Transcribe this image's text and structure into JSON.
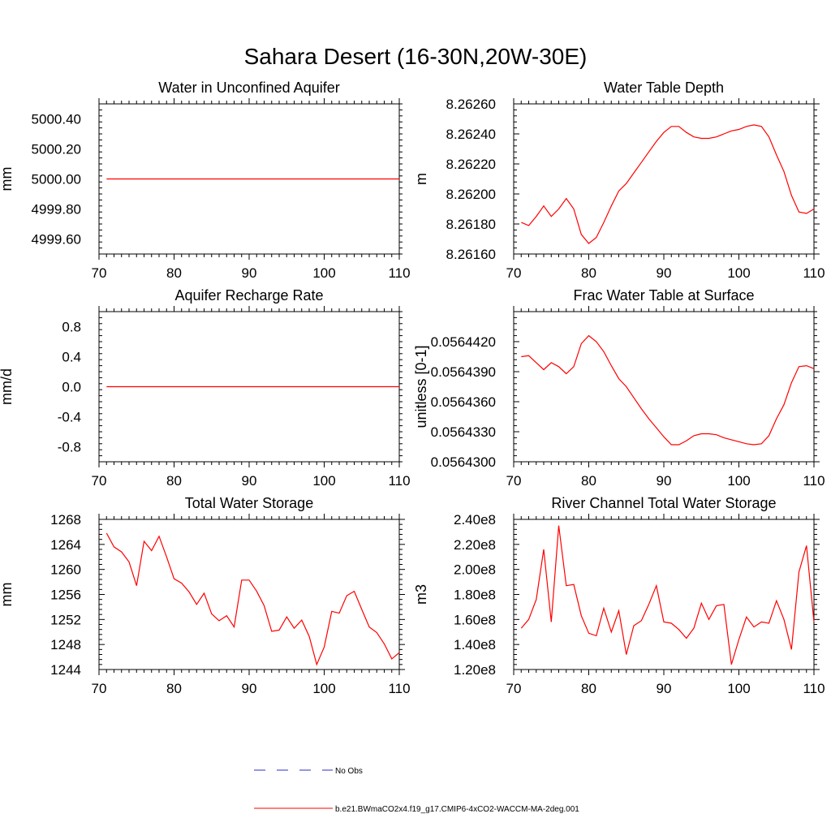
{
  "title": "Sahara Desert (16-30N,20W-30E)",
  "colors": {
    "model": "#ff0000",
    "obs": "#2c2cc8",
    "axis": "#000000"
  },
  "legend": {
    "obs_label": "No Obs",
    "model_label": "b.e21.BWmaCO2x4.f19_g17.CMIP6-4xCO2-WACCM-MA-2deg.001"
  },
  "chart_data": [
    {
      "type": "line",
      "title": "Water in Unconfined Aquifer",
      "ylabel": "mm",
      "xlim": [
        70,
        110
      ],
      "ylim": [
        4999.5,
        5000.5
      ],
      "xticks": [
        "70",
        "80",
        "90",
        "100",
        "110"
      ],
      "yticks": [
        "4999.60",
        "4999.80",
        "5000.00",
        "5000.20",
        "5000.40"
      ],
      "ytick_values": [
        4999.6,
        4999.8,
        5000.0,
        5000.2,
        5000.4
      ],
      "series": [
        {
          "x": [
            71,
            110
          ],
          "values": [
            5000.0,
            5000.0
          ]
        }
      ]
    },
    {
      "type": "line",
      "title": "Water Table Depth",
      "ylabel": "m",
      "xlim": [
        70,
        110
      ],
      "ylim": [
        8.2616,
        8.2626
      ],
      "xticks": [
        "70",
        "80",
        "90",
        "100",
        "110"
      ],
      "yticks": [
        "8.26160",
        "8.26180",
        "8.26200",
        "8.26220",
        "8.26240",
        "8.26260"
      ],
      "ytick_values": [
        8.2616,
        8.2618,
        8.262,
        8.2622,
        8.2624,
        8.2626
      ],
      "series": [
        {
          "x": [
            71,
            72,
            73,
            74,
            75,
            76,
            77,
            78,
            79,
            80,
            81,
            82,
            83,
            84,
            85,
            86,
            87,
            88,
            89,
            90,
            91,
            92,
            93,
            94,
            95,
            96,
            97,
            98,
            99,
            100,
            101,
            102,
            103,
            104,
            105,
            106,
            107,
            108,
            109,
            110
          ],
          "values": [
            8.26181,
            8.26179,
            8.26185,
            8.26192,
            8.26185,
            8.2619,
            8.26197,
            8.2619,
            8.26173,
            8.26167,
            8.26171,
            8.26181,
            8.26192,
            8.26202,
            8.26207,
            8.26214,
            8.26221,
            8.26228,
            8.26235,
            8.26241,
            8.26245,
            8.26245,
            8.26241,
            8.26238,
            8.26237,
            8.26237,
            8.26238,
            8.2624,
            8.26242,
            8.26243,
            8.26245,
            8.26246,
            8.26245,
            8.26238,
            8.26226,
            8.26215,
            8.26199,
            8.26188,
            8.26187,
            8.2619
          ]
        }
      ]
    },
    {
      "type": "line",
      "title": "Aquifer Recharge Rate",
      "ylabel": "mm/d",
      "xlim": [
        70,
        110
      ],
      "ylim": [
        -1.0,
        1.0
      ],
      "xticks": [
        "70",
        "80",
        "90",
        "100",
        "110"
      ],
      "yticks": [
        "-0.8",
        "-0.4",
        "0.0",
        "0.4",
        "0.8"
      ],
      "ytick_values": [
        -0.8,
        -0.4,
        0.0,
        0.4,
        0.8
      ],
      "series": [
        {
          "x": [
            71,
            110
          ],
          "values": [
            0.0,
            0.0
          ]
        }
      ]
    },
    {
      "type": "line",
      "title": "Frac Water Table at Surface",
      "ylabel": "unitless [0-1]",
      "xlim": [
        70,
        110
      ],
      "ylim": [
        0.05643,
        0.056445
      ],
      "xticks": [
        "70",
        "80",
        "90",
        "100",
        "110"
      ],
      "yticks": [
        "0.0564300",
        "0.0564330",
        "0.0564360",
        "0.0564390",
        "0.0564420"
      ],
      "ytick_values": [
        0.05643,
        0.056433,
        0.056436,
        0.056439,
        0.056442
      ],
      "series": [
        {
          "x": [
            71,
            72,
            73,
            74,
            75,
            76,
            77,
            78,
            79,
            80,
            81,
            82,
            83,
            84,
            85,
            86,
            87,
            88,
            89,
            90,
            91,
            92,
            93,
            94,
            95,
            96,
            97,
            98,
            99,
            100,
            101,
            102,
            103,
            104,
            105,
            106,
            107,
            108,
            109,
            110
          ],
          "values": [
            0.0564405,
            0.0564406,
            0.0564399,
            0.0564392,
            0.0564399,
            0.0564395,
            0.0564388,
            0.0564395,
            0.0564418,
            0.0564426,
            0.056442,
            0.056441,
            0.0564396,
            0.0564383,
            0.0564375,
            0.0564364,
            0.0564353,
            0.0564343,
            0.0564334,
            0.0564325,
            0.0564317,
            0.0564317,
            0.0564321,
            0.0564326,
            0.0564328,
            0.0564328,
            0.0564327,
            0.0564324,
            0.0564322,
            0.056432,
            0.0564318,
            0.0564317,
            0.0564318,
            0.0564326,
            0.0564343,
            0.0564357,
            0.0564379,
            0.0564395,
            0.0564396,
            0.0564393
          ]
        }
      ]
    },
    {
      "type": "line",
      "title": "Total Water Storage",
      "ylabel": "mm",
      "xlim": [
        70,
        110
      ],
      "ylim": [
        1244,
        1268
      ],
      "xticks": [
        "70",
        "80",
        "90",
        "100",
        "110"
      ],
      "yticks": [
        "1244",
        "1248",
        "1252",
        "1256",
        "1260",
        "1264",
        "1268"
      ],
      "ytick_values": [
        1244,
        1248,
        1252,
        1256,
        1260,
        1264,
        1268
      ],
      "series": [
        {
          "x": [
            71,
            72,
            73,
            74,
            75,
            76,
            77,
            78,
            79,
            80,
            81,
            82,
            83,
            84,
            85,
            86,
            87,
            88,
            89,
            90,
            91,
            92,
            93,
            94,
            95,
            96,
            97,
            98,
            99,
            100,
            101,
            102,
            103,
            104,
            105,
            106,
            107,
            108,
            109,
            110
          ],
          "values": [
            1265.8,
            1263.6,
            1262.8,
            1261.2,
            1257.4,
            1264.5,
            1263.0,
            1265.3,
            1262.0,
            1258.5,
            1257.8,
            1256.4,
            1254.4,
            1256.2,
            1252.9,
            1251.8,
            1252.6,
            1250.8,
            1258.3,
            1258.3,
            1256.5,
            1254.2,
            1250.1,
            1250.3,
            1252.4,
            1250.6,
            1251.9,
            1249.3,
            1244.8,
            1247.6,
            1253.3,
            1253.0,
            1255.8,
            1256.5,
            1253.6,
            1250.8,
            1249.9,
            1248.1,
            1245.7,
            1246.7
          ]
        }
      ]
    },
    {
      "type": "line",
      "title": "River Channel Total Water Storage",
      "ylabel": "m3",
      "xlim": [
        70,
        110
      ],
      "ylim": [
        120000000,
        240000000
      ],
      "xticks": [
        "70",
        "80",
        "90",
        "100",
        "110"
      ],
      "yticks": [
        "1.20e8",
        "1.40e8",
        "1.60e8",
        "1.80e8",
        "2.00e8",
        "2.20e8",
        "2.40e8"
      ],
      "ytick_values": [
        120000000,
        140000000,
        160000000,
        180000000,
        200000000,
        220000000,
        240000000
      ],
      "series": [
        {
          "x": [
            71,
            72,
            73,
            74,
            75,
            76,
            77,
            78,
            79,
            80,
            81,
            82,
            83,
            84,
            85,
            86,
            87,
            88,
            89,
            90,
            91,
            92,
            93,
            94,
            95,
            96,
            97,
            98,
            99,
            100,
            101,
            102,
            103,
            104,
            105,
            106,
            107,
            108,
            109,
            110
          ],
          "values": [
            153000000,
            160000000,
            176000000,
            216000000,
            158000000,
            235000000,
            187000000,
            188000000,
            163000000,
            149000000,
            147000000,
            169000000,
            150000000,
            167000000,
            132000000,
            155000000,
            159000000,
            172000000,
            187000000,
            158000000,
            157000000,
            152000000,
            145000000,
            153000000,
            173000000,
            160000000,
            171000000,
            172000000,
            124000000,
            144000000,
            162000000,
            154000000,
            158000000,
            157000000,
            175000000,
            160000000,
            136000000,
            198000000,
            219000000,
            158000000
          ]
        }
      ]
    }
  ]
}
